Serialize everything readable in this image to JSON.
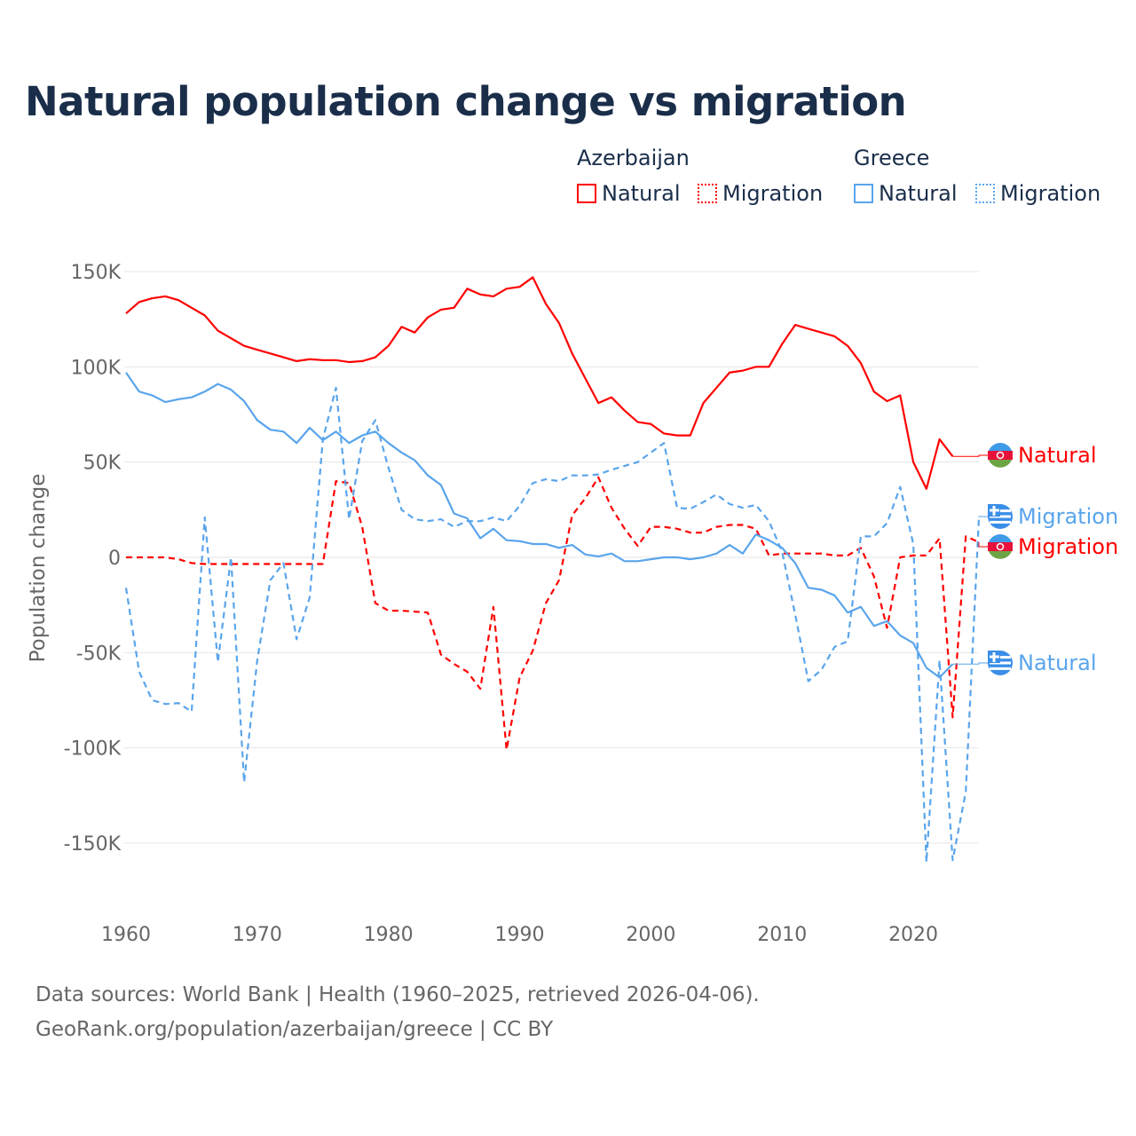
{
  "title": "Natural population change vs migration",
  "legend": {
    "groups": [
      {
        "name": "Azerbaijan",
        "color": "#ff0000",
        "items": [
          "Natural",
          "Migration"
        ]
      },
      {
        "name": "Greece",
        "color": "#5aa5ec",
        "items": [
          "Natural",
          "Migration"
        ]
      }
    ]
  },
  "footer": {
    "line1": "Data sources: World Bank | Health (1960–2025, retrieved 2026-04-06).",
    "line2": "GeoRank.org/population/azerbaijan/greece | CC BY"
  },
  "chart_data": {
    "type": "line",
    "title": "Natural population change vs migration",
    "xlabel": "",
    "ylabel": "Population change",
    "xlim": [
      1960,
      2025
    ],
    "ylim": [
      -165000,
      160000
    ],
    "xticks": [
      1960,
      1970,
      1980,
      1990,
      2000,
      2010,
      2020
    ],
    "xtick_labels": [
      "1960",
      "1970",
      "1980",
      "1990",
      "2000",
      "2010",
      "2020"
    ],
    "yticks": [
      150000,
      100000,
      50000,
      0,
      -50000,
      -100000,
      -150000
    ],
    "ytick_labels": [
      "150K",
      "100K",
      "50K",
      "0",
      "-50K",
      "-100K",
      "-150K"
    ],
    "grid": true,
    "legend_position": "top-right",
    "x_start": 1960,
    "series": [
      {
        "name": "Azerbaijan Natural",
        "end_label": "Natural",
        "country": "Azerbaijan",
        "color": "#ff0000",
        "dash": false,
        "values": [
          128,
          134,
          136,
          137,
          135,
          131,
          127,
          119,
          115,
          111,
          109,
          107,
          105,
          103,
          104,
          103.5,
          103.5,
          102.5,
          103,
          105,
          111,
          121,
          118,
          126,
          130,
          131,
          141,
          138,
          137,
          141,
          142,
          147,
          133,
          123,
          107,
          94,
          81,
          84,
          77,
          71,
          70,
          65,
          64,
          64,
          81,
          89,
          97,
          98,
          100,
          100,
          112,
          122,
          120,
          118,
          116,
          111,
          102,
          87,
          82,
          85,
          50,
          36,
          62,
          53
        ]
      },
      {
        "name": "Azerbaijan Migration",
        "end_label": "Migration",
        "country": "Azerbaijan",
        "color": "#ff0000",
        "dash": true,
        "values": [
          0,
          0,
          0,
          0,
          -1,
          -3,
          -3.5,
          -3.5,
          -3.5,
          -3.5,
          -3.5,
          -3.5,
          -3.5,
          -3.5,
          -3.5,
          -3.5,
          40,
          39,
          16,
          -24,
          -28,
          -28,
          -28.5,
          -29,
          -51,
          -56,
          -60,
          -69,
          -26,
          -101,
          -63,
          -49,
          -24,
          -12,
          22,
          31,
          42,
          26,
          15,
          6,
          16,
          16,
          15,
          13,
          13,
          16,
          17,
          17,
          15,
          1,
          2,
          2,
          2,
          2,
          1,
          1,
          5,
          -10,
          -37,
          0,
          1,
          1,
          10,
          -84,
          11,
          8
        ]
      },
      {
        "name": "Greece Natural",
        "end_label": "Natural",
        "country": "Greece",
        "color": "#5aa5ec",
        "dash": false,
        "values": [
          97,
          87,
          85,
          81.5,
          83,
          84,
          87,
          91,
          88,
          82,
          72,
          67,
          66,
          60,
          68,
          61.5,
          66,
          60,
          64,
          66,
          60,
          55,
          51,
          43,
          38,
          23,
          20.5,
          10,
          15,
          9,
          8.5,
          7,
          7,
          5,
          6.5,
          1.5,
          0.5,
          2,
          -2,
          -2,
          -1,
          0,
          0,
          -1,
          0,
          2,
          6.5,
          2,
          12,
          9,
          5,
          -3,
          -16,
          -17,
          -20,
          -29,
          -26,
          -36,
          -33.5,
          -41,
          -45,
          -58,
          -63,
          -56
        ]
      },
      {
        "name": "Greece Migration",
        "end_label": "Migration",
        "country": "Greece",
        "color": "#5aa5ec",
        "dash": true,
        "values": [
          -16,
          -60,
          -75,
          -77,
          -76.5,
          -81,
          21,
          -55,
          0,
          -118,
          -54,
          -12,
          -3,
          -43,
          -21,
          62,
          89,
          20,
          61,
          72,
          47,
          25,
          20,
          19,
          20,
          16,
          19,
          19,
          21,
          19,
          27,
          39,
          41,
          40,
          43,
          43,
          43.5,
          46,
          48,
          50,
          55,
          60,
          26,
          25.5,
          29,
          33,
          28,
          26,
          27.5,
          19,
          3,
          -30,
          -65,
          -59,
          -47,
          -44,
          11,
          11,
          18,
          37,
          7,
          -160,
          -54,
          -159,
          -123,
          21
        ]
      }
    ],
    "value_unit": "thousands"
  }
}
